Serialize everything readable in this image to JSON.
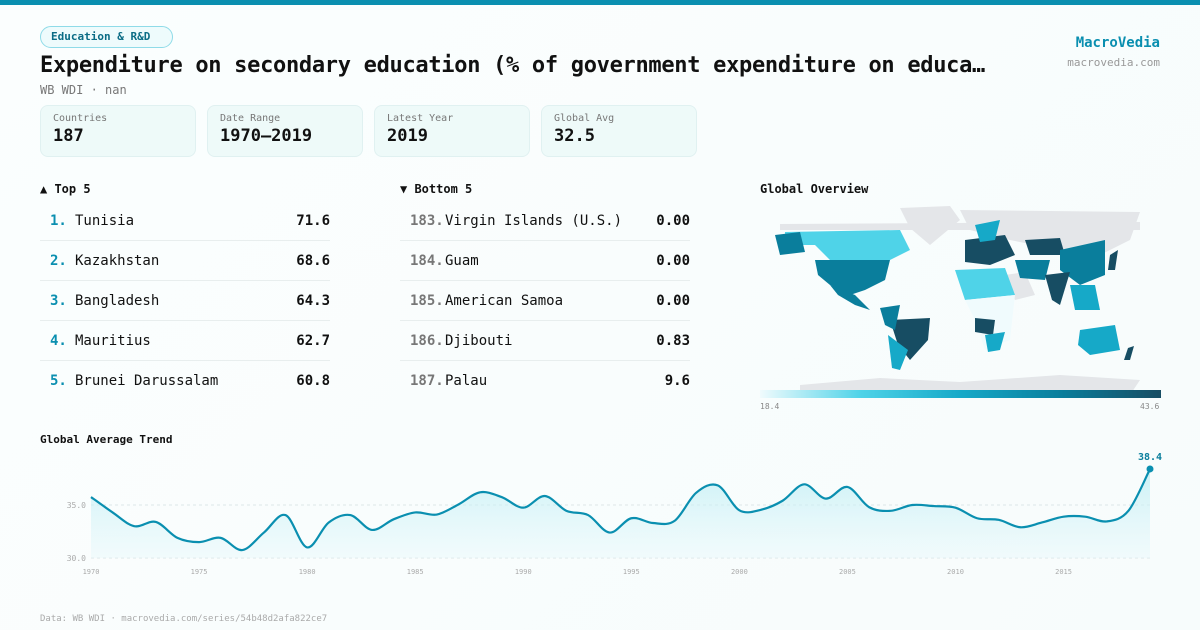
{
  "category": "Education & R&D",
  "title": "Expenditure on secondary education (% of government expenditure on educa…",
  "subtitle": "WB WDI · nan",
  "brand": {
    "name": "MacroVedia",
    "url": "macrovedia.com"
  },
  "stats": [
    {
      "label": "Countries",
      "value": "187"
    },
    {
      "label": "Date Range",
      "value": "1970–2019"
    },
    {
      "label": "Latest Year",
      "value": "2019"
    },
    {
      "label": "Global Avg",
      "value": "32.5"
    }
  ],
  "top5": {
    "title": "▲ Top 5",
    "items": [
      {
        "rank": "1.",
        "name": "Tunisia",
        "value": "71.6"
      },
      {
        "rank": "2.",
        "name": "Kazakhstan",
        "value": "68.6"
      },
      {
        "rank": "3.",
        "name": "Bangladesh",
        "value": "64.3"
      },
      {
        "rank": "4.",
        "name": "Mauritius",
        "value": "62.7"
      },
      {
        "rank": "5.",
        "name": "Brunei Darussalam",
        "value": "60.8"
      }
    ]
  },
  "bottom5": {
    "title": "▼ Bottom 5",
    "items": [
      {
        "rank": "183.",
        "name": "Virgin Islands (U.S.)",
        "value": "0.00"
      },
      {
        "rank": "184.",
        "name": "Guam",
        "value": "0.00"
      },
      {
        "rank": "185.",
        "name": "American Samoa",
        "value": "0.00"
      },
      {
        "rank": "186.",
        "name": "Djibouti",
        "value": "0.83"
      },
      {
        "rank": "187.",
        "name": "Palau",
        "value": "9.6"
      }
    ]
  },
  "map": {
    "title": "Global Overview",
    "scale_min": "18.4",
    "scale_max": "43.6",
    "colors": [
      "#f0fbfd",
      "#4fd3e8",
      "#16a9c8",
      "#0a7e9c",
      "#174d63"
    ]
  },
  "chart_data": {
    "type": "line",
    "title": "Global Average Trend",
    "x": [
      1970,
      1971,
      1972,
      1973,
      1974,
      1975,
      1976,
      1977,
      1978,
      1979,
      1980,
      1981,
      1982,
      1983,
      1984,
      1985,
      1986,
      1987,
      1988,
      1989,
      1990,
      1991,
      1992,
      1993,
      1994,
      1995,
      1996,
      1997,
      1998,
      1999,
      2000,
      2001,
      2002,
      2003,
      2004,
      2005,
      2006,
      2007,
      2008,
      2009,
      2010,
      2011,
      2012,
      2013,
      2014,
      2015,
      2016,
      2017,
      2018,
      2019
    ],
    "values": [
      35.75,
      34.3,
      33.0,
      33.4,
      31.9,
      31.5,
      31.9,
      30.75,
      32.4,
      34.05,
      31.0,
      33.35,
      34.05,
      32.65,
      33.65,
      34.3,
      34.1,
      35.05,
      36.2,
      35.75,
      34.75,
      35.85,
      34.45,
      34.05,
      32.4,
      33.75,
      33.3,
      33.5,
      36.15,
      36.85,
      34.5,
      34.55,
      35.4,
      36.95,
      35.6,
      36.7,
      34.8,
      34.45,
      35.0,
      34.9,
      34.75,
      33.75,
      33.6,
      32.9,
      33.35,
      33.9,
      33.9,
      33.45,
      34.45,
      38.4
    ],
    "yticks": [
      "30.0",
      "35.0"
    ],
    "xticks": [
      "1970",
      "1975",
      "1980",
      "1985",
      "1990",
      "1995",
      "2000",
      "2005",
      "2010",
      "2015"
    ],
    "last_label": "38.4",
    "ylim": [
      30,
      38.4
    ],
    "grid": true,
    "color": "#0a8fb0"
  },
  "footer": "Data: WB WDI · macrovedia.com/series/54b48d2afa822ce7"
}
